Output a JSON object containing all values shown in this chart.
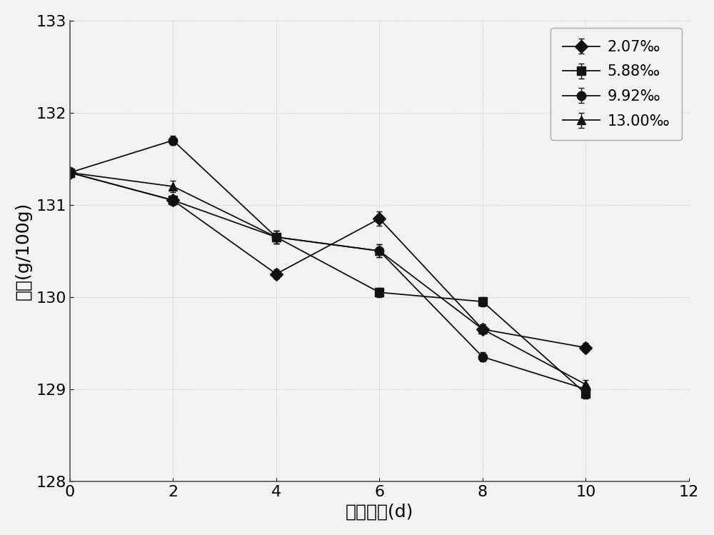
{
  "x": [
    0,
    2,
    4,
    6,
    8,
    10
  ],
  "series": [
    {
      "label": "2.07‰",
      "marker": "D",
      "values": [
        131.35,
        131.05,
        130.25,
        130.85,
        129.65,
        129.45
      ],
      "yerr": [
        0.05,
        0.05,
        0.05,
        0.08,
        0.05,
        0.05
      ]
    },
    {
      "label": "5.88‰",
      "marker": "s",
      "values": [
        131.35,
        131.05,
        130.65,
        130.05,
        129.95,
        128.95
      ],
      "yerr": [
        0.05,
        0.05,
        0.07,
        0.05,
        0.05,
        0.05
      ]
    },
    {
      "label": "9.92‰",
      "marker": "o",
      "values": [
        131.35,
        131.7,
        130.65,
        130.5,
        129.35,
        129.0
      ],
      "yerr": [
        0.05,
        0.05,
        0.07,
        0.07,
        0.05,
        0.05
      ]
    },
    {
      "label": "13.00‰",
      "marker": "^",
      "values": [
        131.35,
        131.2,
        130.65,
        130.5,
        129.65,
        129.05
      ],
      "yerr": [
        0.05,
        0.06,
        0.07,
        0.07,
        0.05,
        0.05
      ]
    }
  ],
  "line_color": "#666666",
  "marker_color": "#111111",
  "xlabel": "加热时间(d)",
  "ylabel": "碷値(g/100g)",
  "xlim": [
    0,
    12
  ],
  "ylim": [
    128,
    133
  ],
  "xticks": [
    0,
    2,
    4,
    6,
    8,
    10,
    12
  ],
  "yticks": [
    128,
    129,
    130,
    131,
    132,
    133
  ],
  "xlabel_fontsize": 18,
  "ylabel_fontsize": 18,
  "tick_fontsize": 16,
  "legend_fontsize": 15,
  "markersize": 9,
  "linewidth": 1.3,
  "bg_color": "#f2f2f2",
  "fig_bg_color": "#f2f2f2"
}
